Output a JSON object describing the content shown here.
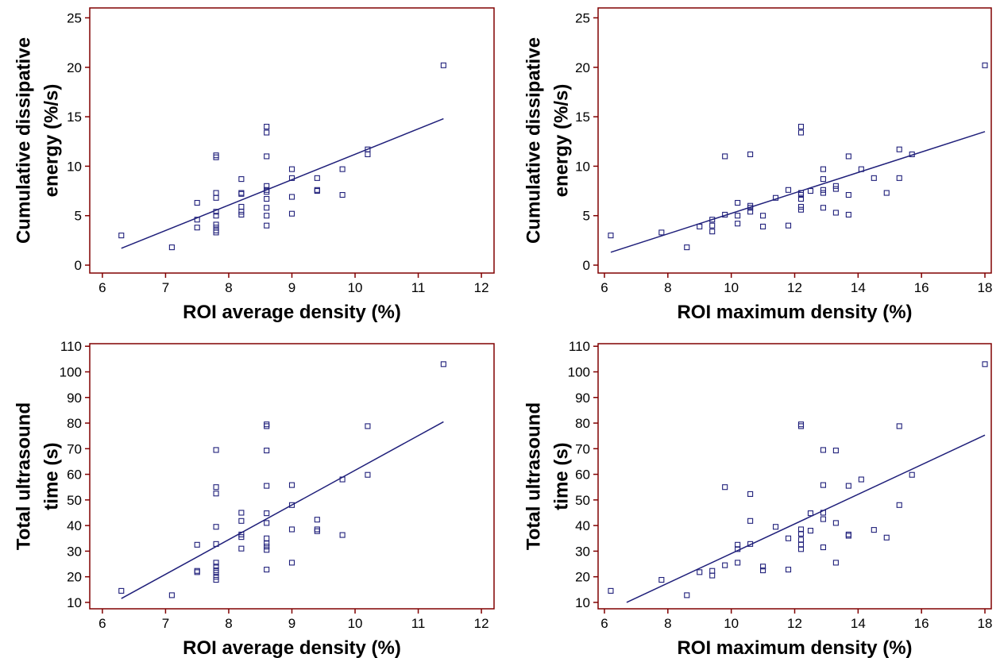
{
  "colors": {
    "frame": "#800000",
    "series": "#1f1f7a",
    "text": "#000000",
    "background": "#ffffff"
  },
  "chart_data": [
    {
      "type": "scatter",
      "xlabel": "ROI average density (%)",
      "ylabel": [
        "Cumulative dissipative",
        "energy (%/s)"
      ],
      "xlim": [
        5.8,
        12.2
      ],
      "ylim": [
        -0.8,
        26
      ],
      "xticks": [
        6,
        7,
        8,
        9,
        10,
        11,
        12
      ],
      "yticks": [
        0,
        5,
        10,
        15,
        20,
        25
      ],
      "grid": false,
      "points": [
        [
          6.3,
          3.0
        ],
        [
          7.1,
          1.8
        ],
        [
          7.5,
          6.3
        ],
        [
          7.5,
          4.6
        ],
        [
          7.5,
          3.8
        ],
        [
          7.8,
          11.1
        ],
        [
          7.8,
          10.9
        ],
        [
          7.8,
          7.3
        ],
        [
          7.8,
          6.8
        ],
        [
          7.8,
          5.4
        ],
        [
          7.8,
          5.0
        ],
        [
          7.8,
          4.1
        ],
        [
          7.8,
          3.8
        ],
        [
          7.8,
          3.5
        ],
        [
          7.8,
          3.3
        ],
        [
          8.2,
          8.7
        ],
        [
          8.2,
          7.3
        ],
        [
          8.2,
          7.2
        ],
        [
          8.2,
          5.9
        ],
        [
          8.2,
          5.4
        ],
        [
          8.2,
          5.1
        ],
        [
          8.6,
          14.0
        ],
        [
          8.6,
          13.4
        ],
        [
          8.6,
          11.0
        ],
        [
          8.6,
          8.0
        ],
        [
          8.6,
          7.6
        ],
        [
          8.6,
          7.4
        ],
        [
          8.6,
          6.7
        ],
        [
          8.6,
          5.8
        ],
        [
          8.6,
          5.0
        ],
        [
          8.6,
          4.0
        ],
        [
          9.0,
          9.7
        ],
        [
          9.0,
          8.8
        ],
        [
          9.0,
          6.9
        ],
        [
          9.0,
          5.2
        ],
        [
          9.4,
          8.8
        ],
        [
          9.4,
          7.6
        ],
        [
          9.4,
          7.5
        ],
        [
          9.8,
          9.7
        ],
        [
          9.8,
          7.1
        ],
        [
          10.2,
          11.7
        ],
        [
          10.2,
          11.2
        ],
        [
          11.4,
          20.2
        ]
      ],
      "fit_line": {
        "x": [
          6.3,
          11.4
        ],
        "y": [
          1.7,
          14.8
        ]
      }
    },
    {
      "type": "scatter",
      "xlabel": "ROI maximum density (%)",
      "ylabel": [
        "Cumulative dissipative",
        "energy (%/s)"
      ],
      "xlim": [
        5.8,
        18.2
      ],
      "ylim": [
        -0.8,
        26
      ],
      "xticks": [
        6,
        8,
        10,
        12,
        14,
        16,
        18
      ],
      "yticks": [
        0,
        5,
        10,
        15,
        20,
        25
      ],
      "grid": false,
      "points": [
        [
          6.2,
          3.0
        ],
        [
          7.8,
          3.3
        ],
        [
          8.6,
          1.8
        ],
        [
          9.0,
          3.9
        ],
        [
          9.4,
          4.6
        ],
        [
          9.4,
          4.0
        ],
        [
          9.4,
          3.4
        ],
        [
          9.8,
          11.0
        ],
        [
          9.8,
          5.1
        ],
        [
          10.2,
          6.3
        ],
        [
          10.2,
          5.0
        ],
        [
          10.2,
          4.2
        ],
        [
          10.6,
          11.2
        ],
        [
          10.6,
          6.0
        ],
        [
          10.6,
          5.8
        ],
        [
          10.6,
          5.4
        ],
        [
          11.0,
          5.0
        ],
        [
          11.0,
          3.9
        ],
        [
          11.4,
          6.8
        ],
        [
          11.8,
          7.6
        ],
        [
          11.8,
          4.0
        ],
        [
          12.2,
          14.0
        ],
        [
          12.2,
          13.4
        ],
        [
          12.2,
          7.3
        ],
        [
          12.2,
          7.1
        ],
        [
          12.2,
          6.7
        ],
        [
          12.2,
          5.9
        ],
        [
          12.2,
          5.6
        ],
        [
          12.5,
          7.5
        ],
        [
          12.9,
          9.7
        ],
        [
          12.9,
          8.7
        ],
        [
          12.9,
          7.6
        ],
        [
          12.9,
          7.3
        ],
        [
          12.9,
          5.8
        ],
        [
          13.3,
          8.0
        ],
        [
          13.3,
          7.7
        ],
        [
          13.3,
          5.3
        ],
        [
          13.7,
          11.0
        ],
        [
          13.7,
          7.1
        ],
        [
          13.7,
          5.1
        ],
        [
          14.1,
          9.7
        ],
        [
          14.5,
          8.8
        ],
        [
          14.9,
          7.3
        ],
        [
          15.3,
          11.7
        ],
        [
          15.3,
          8.8
        ],
        [
          15.7,
          11.2
        ],
        [
          18.0,
          20.2
        ]
      ],
      "fit_line": {
        "x": [
          6.2,
          18.0
        ],
        "y": [
          1.3,
          13.5
        ]
      }
    },
    {
      "type": "scatter",
      "xlabel": "ROI average density (%)",
      "ylabel": [
        "Total ultrasound",
        "time (s)"
      ],
      "xlim": [
        5.8,
        12.2
      ],
      "ylim": [
        7.5,
        111
      ],
      "xticks": [
        6,
        7,
        8,
        9,
        10,
        11,
        12
      ],
      "yticks": [
        10,
        20,
        30,
        40,
        50,
        60,
        70,
        80,
        90,
        100,
        110
      ],
      "grid": false,
      "points": [
        [
          6.3,
          14.5
        ],
        [
          7.1,
          12.8
        ],
        [
          7.5,
          32.5
        ],
        [
          7.5,
          22.3
        ],
        [
          7.5,
          21.8
        ],
        [
          7.8,
          69.5
        ],
        [
          7.8,
          55.0
        ],
        [
          7.8,
          52.5
        ],
        [
          7.8,
          39.5
        ],
        [
          7.8,
          32.8
        ],
        [
          7.8,
          25.5
        ],
        [
          7.8,
          24.0
        ],
        [
          7.8,
          22.5
        ],
        [
          7.8,
          21.5
        ],
        [
          7.8,
          20.0
        ],
        [
          7.8,
          18.8
        ],
        [
          8.2,
          45.0
        ],
        [
          8.2,
          41.8
        ],
        [
          8.2,
          36.5
        ],
        [
          8.2,
          35.5
        ],
        [
          8.2,
          31.0
        ],
        [
          8.6,
          79.5
        ],
        [
          8.6,
          78.8
        ],
        [
          8.6,
          69.3
        ],
        [
          8.6,
          55.5
        ],
        [
          8.6,
          44.8
        ],
        [
          8.6,
          41.0
        ],
        [
          8.6,
          35.0
        ],
        [
          8.6,
          33.0
        ],
        [
          8.6,
          31.8
        ],
        [
          8.6,
          30.5
        ],
        [
          8.6,
          22.8
        ],
        [
          9.0,
          55.8
        ],
        [
          9.0,
          48.0
        ],
        [
          9.0,
          38.5
        ],
        [
          9.0,
          25.5
        ],
        [
          9.4,
          42.3
        ],
        [
          9.4,
          38.5
        ],
        [
          9.4,
          37.8
        ],
        [
          9.8,
          58.0
        ],
        [
          9.8,
          36.3
        ],
        [
          10.2,
          78.8
        ],
        [
          10.2,
          59.8
        ],
        [
          11.4,
          103.0
        ]
      ],
      "fit_line": {
        "x": [
          6.3,
          11.4
        ],
        "y": [
          11.5,
          80.5
        ]
      }
    },
    {
      "type": "scatter",
      "xlabel": "ROI maximum density (%)",
      "ylabel": [
        "Total ultrasound",
        "time (s)"
      ],
      "xlim": [
        5.8,
        18.2
      ],
      "ylim": [
        7.5,
        111
      ],
      "xticks": [
        6,
        8,
        10,
        12,
        14,
        16,
        18
      ],
      "yticks": [
        10,
        20,
        30,
        40,
        50,
        60,
        70,
        80,
        90,
        100,
        110
      ],
      "grid": false,
      "points": [
        [
          6.2,
          14.5
        ],
        [
          7.8,
          18.8
        ],
        [
          8.6,
          12.8
        ],
        [
          9.0,
          21.8
        ],
        [
          9.4,
          22.3
        ],
        [
          9.4,
          20.5
        ],
        [
          9.8,
          55.0
        ],
        [
          9.8,
          24.5
        ],
        [
          10.2,
          32.5
        ],
        [
          10.2,
          30.8
        ],
        [
          10.2,
          25.5
        ],
        [
          10.6,
          52.3
        ],
        [
          10.6,
          41.8
        ],
        [
          10.6,
          32.8
        ],
        [
          11.0,
          24.0
        ],
        [
          11.0,
          22.5
        ],
        [
          11.4,
          39.5
        ],
        [
          11.8,
          35.0
        ],
        [
          11.8,
          22.8
        ],
        [
          12.2,
          79.5
        ],
        [
          12.2,
          78.8
        ],
        [
          12.2,
          38.5
        ],
        [
          12.2,
          36.8
        ],
        [
          12.2,
          34.5
        ],
        [
          12.2,
          32.5
        ],
        [
          12.2,
          30.8
        ],
        [
          12.5,
          44.8
        ],
        [
          12.5,
          38.0
        ],
        [
          12.9,
          69.5
        ],
        [
          12.9,
          55.8
        ],
        [
          12.9,
          45.0
        ],
        [
          12.9,
          42.5
        ],
        [
          12.9,
          31.5
        ],
        [
          13.3,
          69.3
        ],
        [
          13.3,
          41.0
        ],
        [
          13.3,
          25.5
        ],
        [
          13.7,
          55.5
        ],
        [
          13.7,
          36.5
        ],
        [
          13.7,
          36.0
        ],
        [
          14.1,
          58.0
        ],
        [
          14.5,
          38.3
        ],
        [
          14.9,
          35.3
        ],
        [
          15.3,
          78.8
        ],
        [
          15.3,
          48.0
        ],
        [
          15.7,
          59.8
        ],
        [
          18.0,
          103.0
        ]
      ],
      "fit_line": {
        "x": [
          6.7,
          18.0
        ],
        "y": [
          10.0,
          75.3
        ]
      }
    }
  ]
}
